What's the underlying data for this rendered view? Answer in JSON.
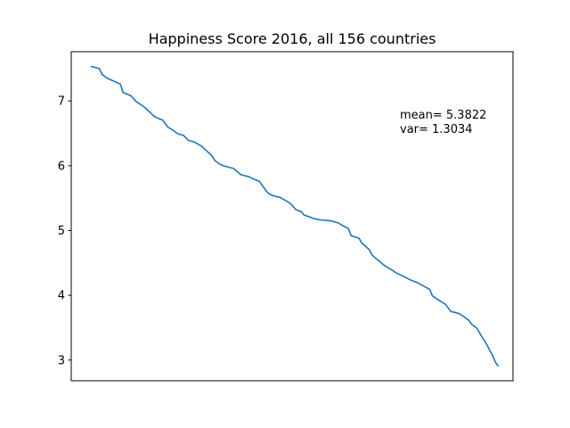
{
  "chart_data": {
    "type": "line",
    "title": "Happiness Score 2016, all 156 countries",
    "xlabel": "",
    "ylabel": "",
    "x_ticks_shown": false,
    "xlim": [
      -6.75,
      161.75
    ],
    "ylim": [
      2.68,
      7.76
    ],
    "yticks": [
      3,
      4,
      5,
      6,
      7
    ],
    "ytick_labels": [
      "3",
      "4",
      "5",
      "6",
      "7"
    ],
    "grid": false,
    "line_color": "#1f77b4",
    "annotations": [
      "mean= 5.3822",
      "var= 1.3034"
    ],
    "series": [
      {
        "x": [
          1,
          4,
          5,
          7,
          12,
          13,
          16,
          18,
          21,
          25,
          27,
          28,
          30,
          32,
          34,
          36,
          38,
          40,
          43,
          47,
          48,
          50,
          52,
          55,
          58,
          61,
          63,
          65,
          68,
          69,
          70,
          73,
          76,
          77,
          79,
          81,
          82,
          86,
          89,
          92,
          95,
          97,
          99,
          100,
          103,
          104,
          107,
          108,
          110,
          113,
          116,
          117,
          120,
          123,
          125,
          130,
          131,
          134,
          136,
          138,
          141,
          143,
          145,
          146,
          148,
          150,
          151,
          152,
          153,
          154,
          155,
          156
        ],
        "y": [
          7.53,
          7.5,
          7.41,
          7.35,
          7.26,
          7.13,
          7.08,
          6.99,
          6.91,
          6.76,
          6.72,
          6.71,
          6.6,
          6.55,
          6.49,
          6.47,
          6.39,
          6.37,
          6.3,
          6.15,
          6.08,
          6.02,
          5.99,
          5.96,
          5.86,
          5.83,
          5.79,
          5.76,
          5.59,
          5.56,
          5.54,
          5.51,
          5.44,
          5.41,
          5.32,
          5.29,
          5.24,
          5.18,
          5.16,
          5.15,
          5.12,
          5.07,
          5.03,
          4.92,
          4.88,
          4.81,
          4.7,
          4.62,
          4.55,
          4.45,
          4.38,
          4.35,
          4.29,
          4.23,
          4.2,
          4.09,
          3.99,
          3.91,
          3.86,
          3.75,
          3.72,
          3.67,
          3.61,
          3.55,
          3.49,
          3.35,
          3.29,
          3.22,
          3.14,
          3.07,
          2.97,
          2.91
        ]
      }
    ]
  }
}
